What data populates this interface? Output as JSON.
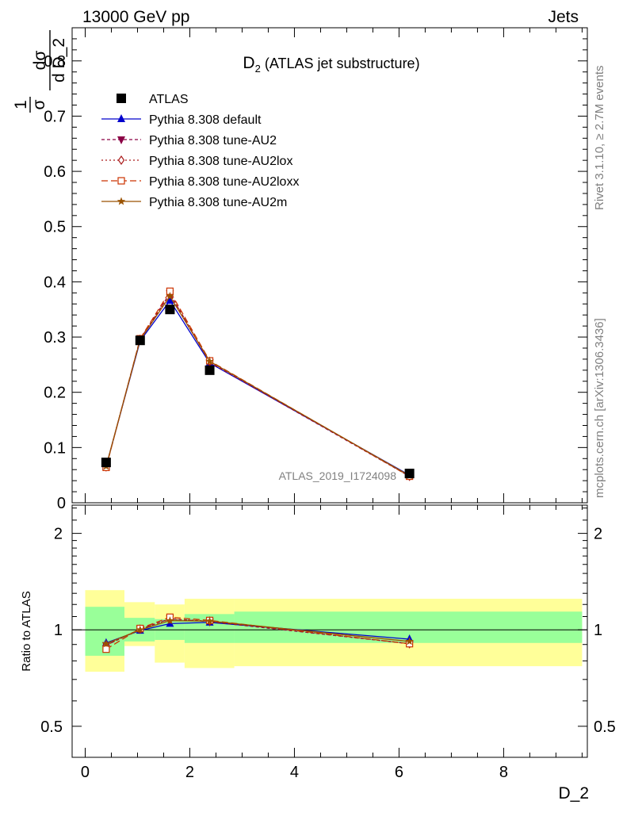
{
  "header": {
    "left": "13000 GeV pp",
    "right": "Jets"
  },
  "side_labels": {
    "rivet": "Rivet 3.1.10, ≥ 2.7M events",
    "mcplots": "mcplots.cern.ch [arXiv:1306.3436]"
  },
  "chart_data": [
    {
      "type": "line",
      "title_main": "D",
      "title_sub": "2",
      "title_rest": " (ATLAS jet substructure)",
      "analysis_id": "ATLAS_2019_I1724098",
      "ylabel_parts": {
        "frac1_num": "1",
        "frac1_den": "σ",
        "frac2_num": "dσ",
        "frac2_den": "d D_2"
      },
      "xlim": [
        -0.25,
        9.6
      ],
      "ylim": [
        0,
        0.86
      ],
      "yticks": [
        0,
        0.1,
        0.2,
        0.3,
        0.4,
        0.5,
        0.6,
        0.7,
        0.8
      ],
      "ytick_labels": [
        "0",
        "0.1",
        "0.2",
        "0.3",
        "0.4",
        "0.5",
        "0.6",
        "0.7",
        "0.8"
      ],
      "x": [
        0.4,
        1.05,
        1.62,
        2.38,
        6.2
      ],
      "data": {
        "name": "ATLAS",
        "values": [
          0.073,
          0.294,
          0.35,
          0.24,
          0.053
        ]
      },
      "series": [
        {
          "name": "Pythia 8.308 default",
          "color": "#0000cc",
          "dash": "",
          "marker": "triangle-up",
          "values": [
            0.066,
            0.293,
            0.366,
            0.253,
            0.05
          ]
        },
        {
          "name": "Pythia 8.308 tune-AU2",
          "color": "#8b0045",
          "dash": "4,3",
          "marker": "triangle-down",
          "values": [
            0.065,
            0.296,
            0.379,
            0.254,
            0.048
          ]
        },
        {
          "name": "Pythia 8.308 tune-AU2lox",
          "color": "#aa1a1a",
          "dash": "2,3",
          "marker": "diamond-open",
          "values": [
            0.065,
            0.296,
            0.378,
            0.256,
            0.048
          ]
        },
        {
          "name": "Pythia 8.308 tune-AU2loxx",
          "color": "#cc3300",
          "dash": "8,4",
          "marker": "square-open",
          "values": [
            0.064,
            0.297,
            0.383,
            0.257,
            0.048
          ]
        },
        {
          "name": "Pythia 8.308 tune-AU2m",
          "color": "#9a5200",
          "dash": "",
          "marker": "star",
          "values": [
            0.066,
            0.295,
            0.374,
            0.256,
            0.049
          ]
        }
      ]
    },
    {
      "type": "line",
      "ylabel": "Ratio to ATLAS",
      "xlabel": "D_2",
      "xlim": [
        -0.25,
        9.6
      ],
      "xticks": [
        0,
        2,
        4,
        6,
        8
      ],
      "xtick_labels": [
        "0",
        "2",
        "4",
        "6",
        "8"
      ],
      "ylim": [
        0.4,
        2.45
      ],
      "log_y": true,
      "yticks": [
        0.5,
        1,
        2
      ],
      "ytick_labels": [
        "0.5",
        "1",
        "2"
      ],
      "bins": [
        {
          "lo": 0.0,
          "hi": 0.75,
          "stat": [
            0.83,
            1.18
          ],
          "total": [
            0.74,
            1.33
          ]
        },
        {
          "lo": 0.75,
          "hi": 1.33,
          "stat": [
            0.92,
            1.09
          ],
          "total": [
            0.89,
            1.22
          ]
        },
        {
          "lo": 1.33,
          "hi": 1.9,
          "stat": [
            0.93,
            1.08
          ],
          "total": [
            0.79,
            1.2
          ]
        },
        {
          "lo": 1.9,
          "hi": 2.85,
          "stat": [
            0.91,
            1.12
          ],
          "total": [
            0.76,
            1.25
          ]
        },
        {
          "lo": 2.85,
          "hi": 9.5,
          "stat": [
            0.91,
            1.14
          ],
          "total": [
            0.77,
            1.25
          ]
        }
      ],
      "x": [
        0.4,
        1.05,
        1.62,
        2.38,
        6.2
      ],
      "series": [
        {
          "name": "Pythia 8.308 default",
          "values": [
            0.91,
            0.995,
            1.046,
            1.055,
            0.935
          ]
        },
        {
          "name": "Pythia 8.308 tune-AU2",
          "values": [
            0.895,
            1.005,
            1.083,
            1.06,
            0.905
          ]
        },
        {
          "name": "Pythia 8.308 tune-AU2lox",
          "values": [
            0.895,
            1.005,
            1.08,
            1.065,
            0.905
          ]
        },
        {
          "name": "Pythia 8.308 tune-AU2loxx",
          "values": [
            0.87,
            1.01,
            1.095,
            1.07,
            0.905
          ]
        },
        {
          "name": "Pythia 8.308 tune-AU2m",
          "values": [
            0.905,
            1.0,
            1.068,
            1.065,
            0.92
          ]
        }
      ]
    }
  ]
}
